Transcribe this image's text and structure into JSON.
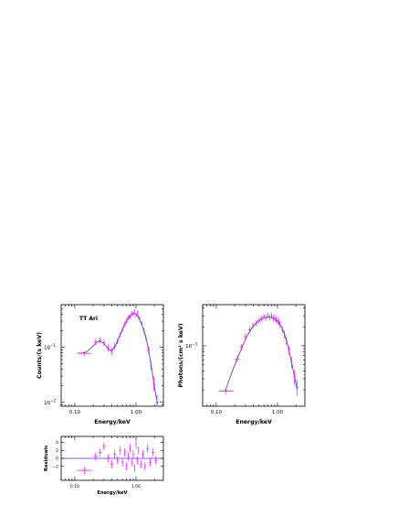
{
  "colors": {
    "model": "#3a3acc",
    "data": "#ff00ff",
    "axes": "#000000"
  },
  "chart_data": [
    {
      "id": "counts",
      "type": "scatter",
      "x_scale": "log",
      "y_scale": "log",
      "xlim": [
        0.06,
        2.8
      ],
      "ylim": [
        0.0085,
        0.6
      ],
      "xlabel": "Energy/keV",
      "ylabel": "Counts/(s keV)",
      "annotation": "TT Ari",
      "x_ticks": [
        {
          "v": 0.1,
          "label": "0.10"
        },
        {
          "v": 1.0,
          "label": "1.00"
        }
      ],
      "y_ticks": [
        {
          "v": 0.01,
          "base": "10",
          "exp": "−2"
        },
        {
          "v": 0.1,
          "base": "10",
          "exp": "−1"
        }
      ],
      "data_points": [
        {
          "x": 0.145,
          "xlo": 0.11,
          "xhi": 0.19,
          "y": 0.078,
          "ylo": 0.07,
          "yhi": 0.087
        },
        {
          "x": 0.22,
          "xlo": 0.2,
          "xhi": 0.24,
          "y": 0.125,
          "ylo": 0.11,
          "yhi": 0.142
        },
        {
          "x": 0.26,
          "xlo": 0.245,
          "xhi": 0.275,
          "y": 0.135,
          "ylo": 0.118,
          "yhi": 0.155
        },
        {
          "x": 0.3,
          "xlo": 0.285,
          "xhi": 0.315,
          "y": 0.122,
          "ylo": 0.105,
          "yhi": 0.142
        },
        {
          "x": 0.35,
          "xlo": 0.33,
          "xhi": 0.37,
          "y": 0.098,
          "ylo": 0.084,
          "yhi": 0.113
        },
        {
          "x": 0.4,
          "xlo": 0.38,
          "xhi": 0.42,
          "y": 0.085,
          "ylo": 0.073,
          "yhi": 0.098
        },
        {
          "x": 0.45,
          "xlo": 0.43,
          "xhi": 0.47,
          "y": 0.105,
          "ylo": 0.092,
          "yhi": 0.12
        },
        {
          "x": 0.5,
          "xlo": 0.48,
          "xhi": 0.52,
          "y": 0.13,
          "ylo": 0.115,
          "yhi": 0.147
        },
        {
          "x": 0.55,
          "xlo": 0.53,
          "xhi": 0.57,
          "y": 0.17,
          "ylo": 0.152,
          "yhi": 0.19
        },
        {
          "x": 0.6,
          "xlo": 0.58,
          "xhi": 0.62,
          "y": 0.21,
          "ylo": 0.19,
          "yhi": 0.232
        },
        {
          "x": 0.65,
          "xlo": 0.63,
          "xhi": 0.67,
          "y": 0.26,
          "ylo": 0.236,
          "yhi": 0.286
        },
        {
          "x": 0.7,
          "xlo": 0.68,
          "xhi": 0.72,
          "y": 0.3,
          "ylo": 0.272,
          "yhi": 0.33
        },
        {
          "x": 0.75,
          "xlo": 0.73,
          "xhi": 0.77,
          "y": 0.35,
          "ylo": 0.318,
          "yhi": 0.384
        },
        {
          "x": 0.8,
          "xlo": 0.78,
          "xhi": 0.82,
          "y": 0.36,
          "ylo": 0.328,
          "yhi": 0.395
        },
        {
          "x": 0.85,
          "xlo": 0.83,
          "xhi": 0.87,
          "y": 0.42,
          "ylo": 0.384,
          "yhi": 0.458
        },
        {
          "x": 0.9,
          "xlo": 0.88,
          "xhi": 0.92,
          "y": 0.4,
          "ylo": 0.364,
          "yhi": 0.438
        },
        {
          "x": 0.95,
          "xlo": 0.93,
          "xhi": 0.97,
          "y": 0.45,
          "ylo": 0.41,
          "yhi": 0.492
        },
        {
          "x": 1.0,
          "xlo": 0.98,
          "xhi": 1.02,
          "y": 0.38,
          "ylo": 0.345,
          "yhi": 0.416
        },
        {
          "x": 1.05,
          "xlo": 1.03,
          "xhi": 1.07,
          "y": 0.42,
          "ylo": 0.382,
          "yhi": 0.46
        },
        {
          "x": 1.1,
          "xlo": 1.08,
          "xhi": 1.12,
          "y": 0.36,
          "ylo": 0.326,
          "yhi": 0.396
        },
        {
          "x": 1.15,
          "xlo": 1.13,
          "xhi": 1.17,
          "y": 0.33,
          "ylo": 0.298,
          "yhi": 0.364
        },
        {
          "x": 1.25,
          "xlo": 1.2,
          "xhi": 1.3,
          "y": 0.27,
          "ylo": 0.242,
          "yhi": 0.3
        },
        {
          "x": 1.35,
          "xlo": 1.3,
          "xhi": 1.4,
          "y": 0.2,
          "ylo": 0.178,
          "yhi": 0.224
        },
        {
          "x": 1.45,
          "xlo": 1.4,
          "xhi": 1.5,
          "y": 0.15,
          "ylo": 0.132,
          "yhi": 0.17
        },
        {
          "x": 1.6,
          "xlo": 1.52,
          "xhi": 1.68,
          "y": 0.09,
          "ylo": 0.077,
          "yhi": 0.104
        },
        {
          "x": 1.75,
          "xlo": 1.68,
          "xhi": 1.82,
          "y": 0.048,
          "ylo": 0.039,
          "yhi": 0.058
        },
        {
          "x": 1.95,
          "xlo": 1.85,
          "xhi": 2.05,
          "y": 0.022,
          "ylo": 0.016,
          "yhi": 0.029
        },
        {
          "x": 2.2,
          "xlo": 2.1,
          "xhi": 2.3,
          "y": 0.01,
          "ylo": 0.0088,
          "yhi": 0.0135
        }
      ],
      "model": [
        {
          "x": 0.11,
          "y": 0.078
        },
        {
          "x": 0.15,
          "y": 0.08
        },
        {
          "x": 0.19,
          "y": 0.1
        },
        {
          "x": 0.23,
          "y": 0.126
        },
        {
          "x": 0.26,
          "y": 0.13
        },
        {
          "x": 0.3,
          "y": 0.118
        },
        {
          "x": 0.34,
          "y": 0.098
        },
        {
          "x": 0.38,
          "y": 0.088
        },
        {
          "x": 0.42,
          "y": 0.092
        },
        {
          "x": 0.47,
          "y": 0.112
        },
        {
          "x": 0.52,
          "y": 0.145
        },
        {
          "x": 0.58,
          "y": 0.195
        },
        {
          "x": 0.65,
          "y": 0.26
        },
        {
          "x": 0.72,
          "y": 0.325
        },
        {
          "x": 0.8,
          "y": 0.38
        },
        {
          "x": 0.88,
          "y": 0.41
        },
        {
          "x": 0.95,
          "y": 0.415
        },
        {
          "x": 1.03,
          "y": 0.39
        },
        {
          "x": 1.12,
          "y": 0.34
        },
        {
          "x": 1.22,
          "y": 0.275
        },
        {
          "x": 1.35,
          "y": 0.2
        },
        {
          "x": 1.5,
          "y": 0.13
        },
        {
          "x": 1.65,
          "y": 0.075
        },
        {
          "x": 1.85,
          "y": 0.034
        },
        {
          "x": 2.05,
          "y": 0.016
        },
        {
          "x": 2.25,
          "y": 0.0092
        }
      ]
    },
    {
      "id": "photons",
      "type": "scatter",
      "x_scale": "log",
      "y_scale": "log",
      "xlim": [
        0.06,
        2.8
      ],
      "ylim": [
        0.00011,
        0.0045
      ],
      "xlabel": "Energy/keV",
      "ylabel": "Photons/(cm² s keV)",
      "x_ticks": [
        {
          "v": 0.1,
          "label": "0.10"
        },
        {
          "v": 1.0,
          "label": "1.00"
        }
      ],
      "y_ticks": [
        {
          "v": 0.001,
          "base": "10",
          "exp": "−3"
        }
      ],
      "data_points": [
        {
          "x": 0.145,
          "xlo": 0.11,
          "xhi": 0.19,
          "y": 0.00019,
          "ylo": 0.00017,
          "yhi": 0.00021
        },
        {
          "x": 0.22,
          "xlo": 0.2,
          "xhi": 0.24,
          "y": 0.00062,
          "ylo": 0.00055,
          "yhi": 0.0007
        },
        {
          "x": 0.26,
          "xlo": 0.245,
          "xhi": 0.275,
          "y": 0.00095,
          "ylo": 0.00085,
          "yhi": 0.00106
        },
        {
          "x": 0.3,
          "xlo": 0.285,
          "xhi": 0.315,
          "y": 0.0014,
          "ylo": 0.00125,
          "yhi": 0.00156
        },
        {
          "x": 0.35,
          "xlo": 0.33,
          "xhi": 0.37,
          "y": 0.0018,
          "ylo": 0.0016,
          "yhi": 0.002
        },
        {
          "x": 0.4,
          "xlo": 0.38,
          "xhi": 0.42,
          "y": 0.0021,
          "ylo": 0.00188,
          "yhi": 0.00234
        },
        {
          "x": 0.45,
          "xlo": 0.43,
          "xhi": 0.47,
          "y": 0.0023,
          "ylo": 0.00206,
          "yhi": 0.00256
        },
        {
          "x": 0.5,
          "xlo": 0.48,
          "xhi": 0.52,
          "y": 0.0025,
          "ylo": 0.00224,
          "yhi": 0.00278
        },
        {
          "x": 0.55,
          "xlo": 0.53,
          "xhi": 0.57,
          "y": 0.0027,
          "ylo": 0.00244,
          "yhi": 0.00298
        },
        {
          "x": 0.6,
          "xlo": 0.58,
          "xhi": 0.62,
          "y": 0.0029,
          "ylo": 0.00262,
          "yhi": 0.0032
        },
        {
          "x": 0.65,
          "xlo": 0.63,
          "xhi": 0.67,
          "y": 0.0028,
          "ylo": 0.00252,
          "yhi": 0.0031
        },
        {
          "x": 0.7,
          "xlo": 0.68,
          "xhi": 0.72,
          "y": 0.003,
          "ylo": 0.0027,
          "yhi": 0.00332
        },
        {
          "x": 0.75,
          "xlo": 0.73,
          "xhi": 0.77,
          "y": 0.00285,
          "ylo": 0.00256,
          "yhi": 0.00316
        },
        {
          "x": 0.8,
          "xlo": 0.78,
          "xhi": 0.82,
          "y": 0.003,
          "ylo": 0.0027,
          "yhi": 0.00332
        },
        {
          "x": 0.85,
          "xlo": 0.83,
          "xhi": 0.87,
          "y": 0.0027,
          "ylo": 0.00242,
          "yhi": 0.003
        },
        {
          "x": 0.9,
          "xlo": 0.88,
          "xhi": 0.92,
          "y": 0.0028,
          "ylo": 0.0025,
          "yhi": 0.00312
        },
        {
          "x": 0.95,
          "xlo": 0.93,
          "xhi": 0.97,
          "y": 0.0026,
          "ylo": 0.00232,
          "yhi": 0.0029
        },
        {
          "x": 1.0,
          "xlo": 0.98,
          "xhi": 1.02,
          "y": 0.0025,
          "ylo": 0.00222,
          "yhi": 0.0028
        },
        {
          "x": 1.05,
          "xlo": 1.03,
          "xhi": 1.07,
          "y": 0.0024,
          "ylo": 0.00212,
          "yhi": 0.0027
        },
        {
          "x": 1.1,
          "xlo": 1.08,
          "xhi": 1.12,
          "y": 0.0022,
          "ylo": 0.00194,
          "yhi": 0.00248
        },
        {
          "x": 1.2,
          "xlo": 1.15,
          "xhi": 1.25,
          "y": 0.0018,
          "ylo": 0.00158,
          "yhi": 0.00204
        },
        {
          "x": 1.3,
          "xlo": 1.25,
          "xhi": 1.35,
          "y": 0.0015,
          "ylo": 0.0013,
          "yhi": 0.00172
        },
        {
          "x": 1.4,
          "xlo": 1.35,
          "xhi": 1.45,
          "y": 0.0012,
          "ylo": 0.00103,
          "yhi": 0.00139
        },
        {
          "x": 1.55,
          "xlo": 1.48,
          "xhi": 1.62,
          "y": 0.00085,
          "ylo": 0.00071,
          "yhi": 0.001
        },
        {
          "x": 1.7,
          "xlo": 1.62,
          "xhi": 1.78,
          "y": 0.00055,
          "ylo": 0.00044,
          "yhi": 0.00067
        },
        {
          "x": 1.9,
          "xlo": 1.8,
          "xhi": 2.0,
          "y": 0.00032,
          "ylo": 0.00024,
          "yhi": 0.00041
        },
        {
          "x": 2.1,
          "xlo": 2.0,
          "xhi": 2.2,
          "y": 0.00022,
          "ylo": 0.00016,
          "yhi": 0.00029
        }
      ],
      "model": [
        {
          "x": 0.14,
          "y": 0.00019
        },
        {
          "x": 0.18,
          "y": 0.00038
        },
        {
          "x": 0.22,
          "y": 0.00062
        },
        {
          "x": 0.27,
          "y": 0.001
        },
        {
          "x": 0.32,
          "y": 0.00145
        },
        {
          "x": 0.38,
          "y": 0.0019
        },
        {
          "x": 0.45,
          "y": 0.0023
        },
        {
          "x": 0.53,
          "y": 0.00262
        },
        {
          "x": 0.62,
          "y": 0.0028
        },
        {
          "x": 0.72,
          "y": 0.00285
        },
        {
          "x": 0.82,
          "y": 0.00278
        },
        {
          "x": 0.92,
          "y": 0.00262
        },
        {
          "x": 1.02,
          "y": 0.0024
        },
        {
          "x": 1.12,
          "y": 0.00212
        },
        {
          "x": 1.25,
          "y": 0.0017
        },
        {
          "x": 1.4,
          "y": 0.00122
        },
        {
          "x": 1.55,
          "y": 0.00082
        },
        {
          "x": 1.72,
          "y": 0.00052
        },
        {
          "x": 1.9,
          "y": 0.00032
        },
        {
          "x": 2.1,
          "y": 0.0002
        }
      ]
    },
    {
      "id": "residuals",
      "type": "scatter",
      "x_scale": "log",
      "y_scale": "linear",
      "xlim": [
        0.06,
        2.8
      ],
      "ylim": [
        -5.5,
        5.5
      ],
      "xlabel": "Energy/keV",
      "ylabel": "Residuals",
      "x_ticks": [
        {
          "v": 0.1,
          "label": "0.10"
        },
        {
          "v": 1.0,
          "label": "1.00"
        }
      ],
      "y_ticks": [
        {
          "v": -2,
          "label": "−2"
        },
        {
          "v": 0,
          "label": "0"
        },
        {
          "v": 2,
          "label": "2"
        },
        {
          "v": 4,
          "label": "4"
        }
      ],
      "zero_line": 0,
      "data_points": [
        {
          "x": 0.145,
          "xlo": 0.11,
          "xhi": 0.19,
          "y": -3.0,
          "ylo": -3.9,
          "yhi": -2.1
        },
        {
          "x": 0.22,
          "xlo": 0.2,
          "xhi": 0.24,
          "y": 0.5,
          "ylo": -0.5,
          "yhi": 1.5
        },
        {
          "x": 0.26,
          "xlo": 0.245,
          "xhi": 0.275,
          "y": 1.5,
          "ylo": 0.5,
          "yhi": 2.5
        },
        {
          "x": 0.3,
          "xlo": 0.285,
          "xhi": 0.315,
          "y": 3.0,
          "ylo": 2.0,
          "yhi": 4.0
        },
        {
          "x": 0.35,
          "xlo": 0.33,
          "xhi": 0.37,
          "y": 0.0,
          "ylo": -1.0,
          "yhi": 1.0
        },
        {
          "x": 0.4,
          "xlo": 0.38,
          "xhi": 0.42,
          "y": -1.5,
          "ylo": -2.5,
          "yhi": -0.5
        },
        {
          "x": 0.45,
          "xlo": 0.43,
          "xhi": 0.47,
          "y": 1.0,
          "ylo": 0.0,
          "yhi": 2.0
        },
        {
          "x": 0.5,
          "xlo": 0.48,
          "xhi": 0.52,
          "y": -0.5,
          "ylo": -1.5,
          "yhi": 0.5
        },
        {
          "x": 0.55,
          "xlo": 0.53,
          "xhi": 0.57,
          "y": 2.0,
          "ylo": 1.0,
          "yhi": 3.0
        },
        {
          "x": 0.6,
          "xlo": 0.58,
          "xhi": 0.62,
          "y": -1.0,
          "ylo": -2.0,
          "yhi": 0.0
        },
        {
          "x": 0.65,
          "xlo": 0.63,
          "xhi": 0.67,
          "y": 1.5,
          "ylo": 0.5,
          "yhi": 2.5
        },
        {
          "x": 0.7,
          "xlo": 0.68,
          "xhi": 0.72,
          "y": -2.0,
          "ylo": -3.0,
          "yhi": -1.0
        },
        {
          "x": 0.75,
          "xlo": 0.73,
          "xhi": 0.77,
          "y": 0.5,
          "ylo": -0.5,
          "yhi": 1.5
        },
        {
          "x": 0.8,
          "xlo": 0.78,
          "xhi": 0.82,
          "y": 2.5,
          "ylo": 1.5,
          "yhi": 3.5
        },
        {
          "x": 0.85,
          "xlo": 0.83,
          "xhi": 0.87,
          "y": -1.0,
          "ylo": -2.0,
          "yhi": 0.0
        },
        {
          "x": 0.9,
          "xlo": 0.88,
          "xhi": 0.92,
          "y": 1.0,
          "ylo": 0.0,
          "yhi": 2.0
        },
        {
          "x": 0.95,
          "xlo": 0.93,
          "xhi": 0.97,
          "y": -2.5,
          "ylo": -3.5,
          "yhi": -1.5
        },
        {
          "x": 1.0,
          "xlo": 0.98,
          "xhi": 1.02,
          "y": 3.5,
          "ylo": 2.5,
          "yhi": 4.5
        },
        {
          "x": 1.05,
          "xlo": 1.03,
          "xhi": 1.07,
          "y": -0.5,
          "ylo": -1.5,
          "yhi": 0.5
        },
        {
          "x": 1.1,
          "xlo": 1.08,
          "xhi": 1.12,
          "y": 2.0,
          "ylo": 1.0,
          "yhi": 3.0
        },
        {
          "x": 1.2,
          "xlo": 1.15,
          "xhi": 1.25,
          "y": -1.5,
          "ylo": -2.5,
          "yhi": -0.5
        },
        {
          "x": 1.3,
          "xlo": 1.25,
          "xhi": 1.35,
          "y": 1.0,
          "ylo": 0.0,
          "yhi": 2.0
        },
        {
          "x": 1.4,
          "xlo": 1.35,
          "xhi": 1.45,
          "y": -2.0,
          "ylo": -3.0,
          "yhi": -1.0
        },
        {
          "x": 1.55,
          "xlo": 1.48,
          "xhi": 1.62,
          "y": 2.5,
          "ylo": 1.5,
          "yhi": 3.5
        },
        {
          "x": 1.7,
          "xlo": 1.62,
          "xhi": 1.78,
          "y": -1.0,
          "ylo": -2.0,
          "yhi": 0.0
        },
        {
          "x": 1.9,
          "xlo": 1.8,
          "xhi": 2.0,
          "y": 1.5,
          "ylo": 0.5,
          "yhi": 2.5
        },
        {
          "x": 2.1,
          "xlo": 2.0,
          "xhi": 2.2,
          "y": -0.5,
          "ylo": -1.5,
          "yhi": 0.5
        }
      ]
    }
  ]
}
